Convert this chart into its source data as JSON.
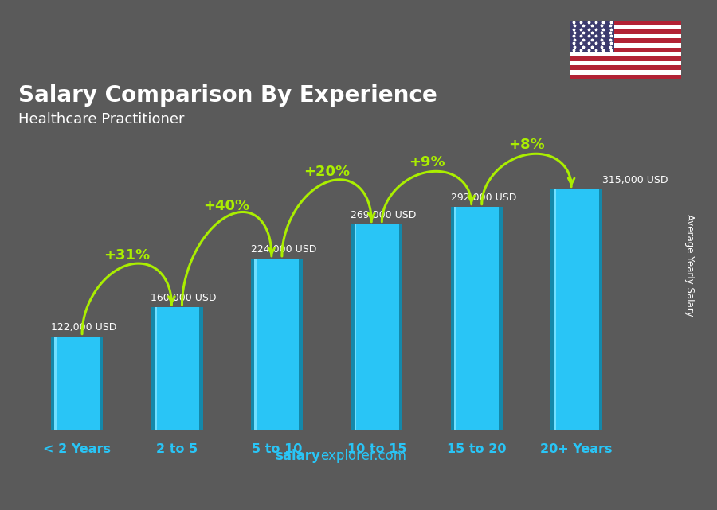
{
  "title": "Salary Comparison By Experience",
  "subtitle": "Healthcare Practitioner",
  "categories": [
    "< 2 Years",
    "2 to 5",
    "5 to 10",
    "10 to 15",
    "15 to 20",
    "20+ Years"
  ],
  "values": [
    122000,
    160000,
    224000,
    269000,
    292000,
    315000
  ],
  "value_labels": [
    "122,000 USD",
    "160,000 USD",
    "224,000 USD",
    "269,000 USD",
    "292,000 USD",
    "315,000 USD"
  ],
  "pct_changes": [
    "+31%",
    "+40%",
    "+20%",
    "+9%",
    "+8%"
  ],
  "bar_color_main": "#29C5F6",
  "bar_color_dark": "#1488AA",
  "bar_color_light": "#70DFFF",
  "bar_top_color": "#50CFFF",
  "background_color": "#5a5a5a",
  "text_color": "#ffffff",
  "green_color": "#aaee00",
  "xlabel_color": "#29C5F6",
  "ylabel": "Average Yearly Salary",
  "footer_salary": "salary",
  "footer_explorer": "explorer.com",
  "ylim_max": 400000,
  "bar_width": 0.52
}
